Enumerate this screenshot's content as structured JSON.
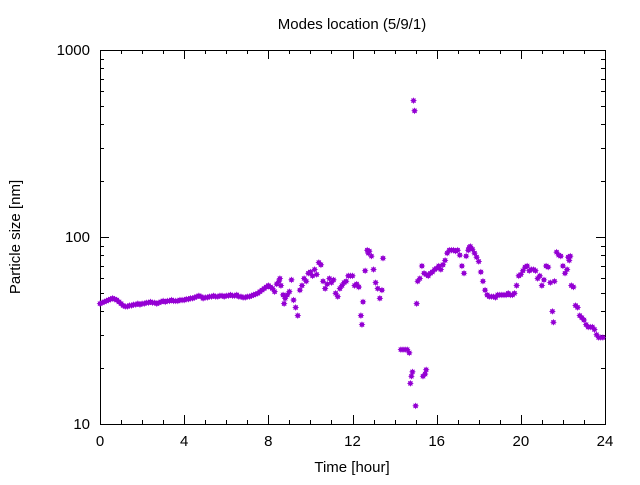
{
  "chart_data": {
    "type": "scatter",
    "title": "Modes location (5/9/1)",
    "xlabel": "Time [hour]",
    "ylabel": "Particle size [nm]",
    "xlim": [
      0,
      24
    ],
    "ylim": [
      10,
      1000
    ],
    "y_scale": "log",
    "x_ticks": [
      "0",
      "4",
      "8",
      "12",
      "16",
      "20",
      "24"
    ],
    "y_ticks": [
      "10",
      "100",
      "1000"
    ],
    "grid": false,
    "legend": "none",
    "marker_color": "#9400d3",
    "marker": "star",
    "points": [
      [
        0.0,
        44
      ],
      [
        0.1,
        44.5
      ],
      [
        0.2,
        45
      ],
      [
        0.3,
        45.5
      ],
      [
        0.4,
        46
      ],
      [
        0.5,
        46.5
      ],
      [
        0.6,
        47
      ],
      [
        0.7,
        46.5
      ],
      [
        0.8,
        46
      ],
      [
        0.9,
        45
      ],
      [
        1.0,
        44
      ],
      [
        1.1,
        43
      ],
      [
        1.2,
        42.5
      ],
      [
        1.3,
        42.5
      ],
      [
        1.4,
        43
      ],
      [
        1.5,
        43
      ],
      [
        1.6,
        43.5
      ],
      [
        1.7,
        43.5
      ],
      [
        1.8,
        44
      ],
      [
        1.9,
        43.5
      ],
      [
        2.0,
        44
      ],
      [
        2.1,
        44
      ],
      [
        2.2,
        44.5
      ],
      [
        2.3,
        44.5
      ],
      [
        2.4,
        45
      ],
      [
        2.5,
        44.5
      ],
      [
        2.6,
        44.5
      ],
      [
        2.7,
        44
      ],
      [
        2.8,
        44.5
      ],
      [
        2.9,
        45
      ],
      [
        3.0,
        45.5
      ],
      [
        3.1,
        45
      ],
      [
        3.2,
        45.5
      ],
      [
        3.3,
        45.5
      ],
      [
        3.4,
        46
      ],
      [
        3.5,
        45.5
      ],
      [
        3.6,
        45.5
      ],
      [
        3.7,
        45.5
      ],
      [
        3.8,
        46
      ],
      [
        3.9,
        46
      ],
      [
        4.0,
        46
      ],
      [
        4.1,
        46.5
      ],
      [
        4.2,
        46.5
      ],
      [
        4.3,
        47
      ],
      [
        4.4,
        47
      ],
      [
        4.5,
        47.5
      ],
      [
        4.6,
        48
      ],
      [
        4.7,
        48.5
      ],
      [
        4.8,
        48
      ],
      [
        4.9,
        47
      ],
      [
        5.0,
        47.5
      ],
      [
        5.1,
        47.5
      ],
      [
        5.2,
        48
      ],
      [
        5.3,
        48
      ],
      [
        5.4,
        48.5
      ],
      [
        5.5,
        48
      ],
      [
        5.6,
        48
      ],
      [
        5.7,
        48.5
      ],
      [
        5.8,
        48.5
      ],
      [
        5.9,
        48
      ],
      [
        6.0,
        48.5
      ],
      [
        6.1,
        48.5
      ],
      [
        6.2,
        49
      ],
      [
        6.3,
        48.5
      ],
      [
        6.4,
        48.5
      ],
      [
        6.5,
        49
      ],
      [
        6.6,
        48
      ],
      [
        6.7,
        48
      ],
      [
        6.8,
        47.5
      ],
      [
        6.9,
        47.5
      ],
      [
        7.0,
        48
      ],
      [
        7.1,
        48
      ],
      [
        7.2,
        48.5
      ],
      [
        7.3,
        49
      ],
      [
        7.4,
        49.5
      ],
      [
        7.5,
        50
      ],
      [
        7.6,
        51
      ],
      [
        7.7,
        52
      ],
      [
        7.8,
        53
      ],
      [
        7.9,
        54
      ],
      [
        8.0,
        55
      ],
      [
        8.1,
        54
      ],
      [
        8.2,
        53
      ],
      [
        8.3,
        51
      ],
      [
        8.4,
        56
      ],
      [
        8.5,
        58
      ],
      [
        8.55,
        60
      ],
      [
        8.6,
        55
      ],
      [
        8.7,
        49
      ],
      [
        8.75,
        44
      ],
      [
        8.8,
        47
      ],
      [
        8.9,
        49
      ],
      [
        9.0,
        51
      ],
      [
        9.1,
        59
      ],
      [
        9.2,
        46
      ],
      [
        9.3,
        42
      ],
      [
        9.4,
        38
      ],
      [
        9.5,
        52
      ],
      [
        9.6,
        55
      ],
      [
        9.7,
        60
      ],
      [
        9.8,
        58
      ],
      [
        9.9,
        64
      ],
      [
        10.0,
        65
      ],
      [
        10.1,
        62
      ],
      [
        10.2,
        67
      ],
      [
        10.3,
        63
      ],
      [
        10.4,
        73
      ],
      [
        10.5,
        71
      ],
      [
        10.6,
        58
      ],
      [
        10.7,
        53
      ],
      [
        10.8,
        56
      ],
      [
        10.9,
        60
      ],
      [
        11.0,
        57
      ],
      [
        11.1,
        59
      ],
      [
        11.2,
        50
      ],
      [
        11.3,
        48
      ],
      [
        11.4,
        53
      ],
      [
        11.5,
        55
      ],
      [
        11.6,
        57
      ],
      [
        11.7,
        58
      ],
      [
        11.8,
        62
      ],
      [
        11.9,
        62
      ],
      [
        12.0,
        62
      ],
      [
        12.1,
        55
      ],
      [
        12.2,
        56
      ],
      [
        12.3,
        54
      ],
      [
        12.4,
        38
      ],
      [
        12.45,
        34
      ],
      [
        12.5,
        45
      ],
      [
        12.6,
        66
      ],
      [
        12.7,
        85
      ],
      [
        12.75,
        82
      ],
      [
        12.8,
        84
      ],
      [
        12.9,
        79
      ],
      [
        13.0,
        67
      ],
      [
        13.1,
        57
      ],
      [
        13.2,
        53
      ],
      [
        13.3,
        47
      ],
      [
        13.4,
        52
      ],
      [
        13.45,
        77
      ],
      [
        14.3,
        25
      ],
      [
        14.4,
        25
      ],
      [
        14.5,
        25
      ],
      [
        14.6,
        25
      ],
      [
        14.7,
        24
      ],
      [
        14.75,
        16.5
      ],
      [
        14.8,
        18
      ],
      [
        14.85,
        19
      ],
      [
        14.9,
        536
      ],
      [
        14.95,
        473
      ],
      [
        15.0,
        12.5
      ],
      [
        15.05,
        44
      ],
      [
        15.1,
        58
      ],
      [
        15.2,
        60
      ],
      [
        15.3,
        70
      ],
      [
        15.35,
        18
      ],
      [
        15.45,
        18.5
      ],
      [
        15.5,
        19.5
      ],
      [
        15.4,
        64
      ],
      [
        15.5,
        63
      ],
      [
        15.6,
        62
      ],
      [
        15.7,
        64
      ],
      [
        15.8,
        65
      ],
      [
        15.9,
        67
      ],
      [
        16.0,
        68
      ],
      [
        16.1,
        70
      ],
      [
        16.2,
        67
      ],
      [
        16.3,
        71
      ],
      [
        16.4,
        75
      ],
      [
        16.5,
        82
      ],
      [
        16.6,
        85
      ],
      [
        16.7,
        85
      ],
      [
        16.8,
        85
      ],
      [
        16.9,
        84
      ],
      [
        17.0,
        85
      ],
      [
        17.1,
        80
      ],
      [
        17.2,
        70
      ],
      [
        17.3,
        64
      ],
      [
        17.4,
        79
      ],
      [
        17.5,
        85
      ],
      [
        17.55,
        88
      ],
      [
        17.6,
        89
      ],
      [
        17.7,
        86
      ],
      [
        17.8,
        82
      ],
      [
        17.9,
        78
      ],
      [
        18.0,
        74
      ],
      [
        18.1,
        65
      ],
      [
        18.2,
        58
      ],
      [
        18.3,
        52
      ],
      [
        18.4,
        49
      ],
      [
        18.5,
        48
      ],
      [
        18.6,
        48
      ],
      [
        18.7,
        48
      ],
      [
        18.8,
        47.5
      ],
      [
        18.9,
        49
      ],
      [
        19.0,
        49
      ],
      [
        19.1,
        49
      ],
      [
        19.2,
        49
      ],
      [
        19.3,
        49
      ],
      [
        19.4,
        50
      ],
      [
        19.5,
        49
      ],
      [
        19.6,
        49
      ],
      [
        19.7,
        50
      ],
      [
        19.8,
        55
      ],
      [
        19.9,
        62
      ],
      [
        20.0,
        63
      ],
      [
        20.1,
        66
      ],
      [
        20.2,
        69
      ],
      [
        20.3,
        70
      ],
      [
        20.4,
        66
      ],
      [
        20.5,
        67
      ],
      [
        20.6,
        67
      ],
      [
        20.7,
        66
      ],
      [
        20.8,
        60
      ],
      [
        20.9,
        62
      ],
      [
        21.0,
        55
      ],
      [
        21.1,
        59
      ],
      [
        21.2,
        70
      ],
      [
        21.3,
        69
      ],
      [
        21.4,
        57
      ],
      [
        21.5,
        40
      ],
      [
        21.55,
        35
      ],
      [
        21.6,
        58
      ],
      [
        21.7,
        83
      ],
      [
        21.8,
        80
      ],
      [
        21.9,
        79
      ],
      [
        22.0,
        70
      ],
      [
        22.1,
        64
      ],
      [
        22.2,
        67
      ],
      [
        22.25,
        78
      ],
      [
        22.3,
        75
      ],
      [
        22.35,
        79
      ],
      [
        22.4,
        55
      ],
      [
        22.5,
        54
      ],
      [
        22.6,
        43
      ],
      [
        22.7,
        42
      ],
      [
        22.8,
        38
      ],
      [
        22.9,
        37
      ],
      [
        23.0,
        36
      ],
      [
        23.1,
        34
      ],
      [
        23.2,
        33
      ],
      [
        23.3,
        33
      ],
      [
        23.4,
        33
      ],
      [
        23.5,
        32
      ],
      [
        23.6,
        30
      ],
      [
        23.7,
        29
      ],
      [
        23.8,
        29
      ],
      [
        23.9,
        29
      ]
    ]
  }
}
